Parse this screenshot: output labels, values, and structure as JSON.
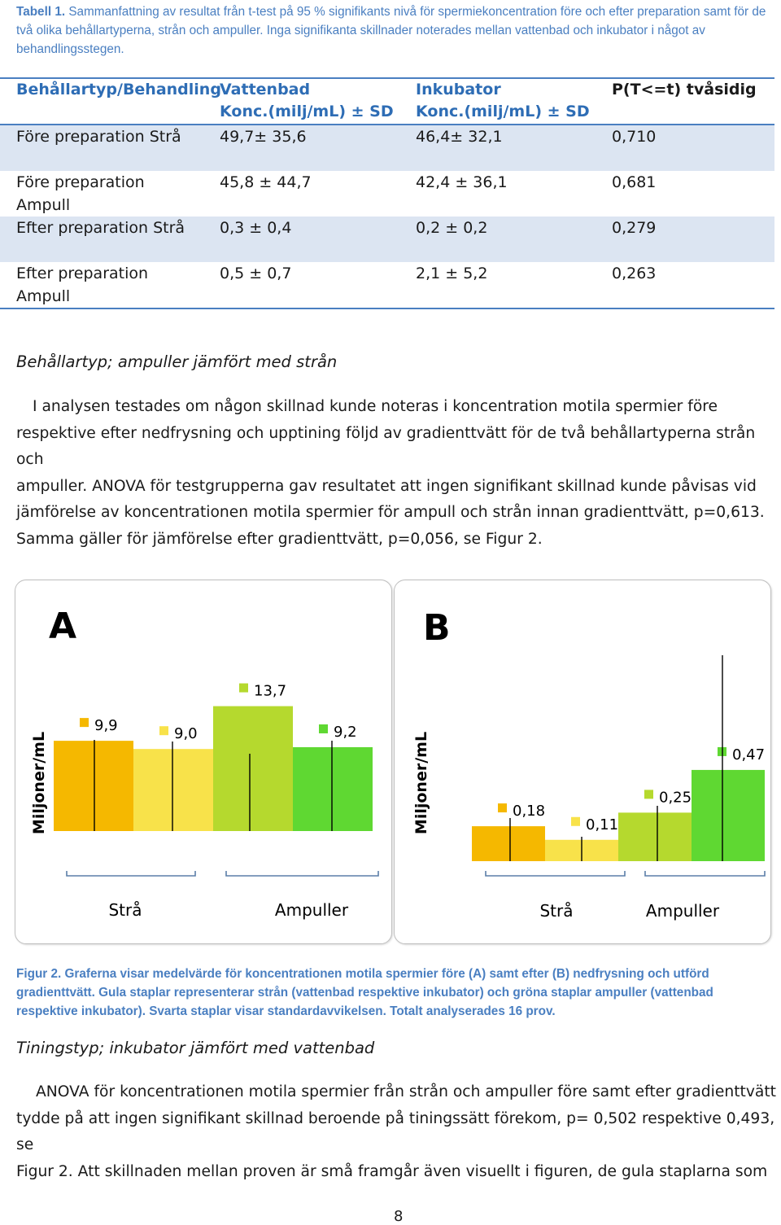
{
  "table_caption": {
    "prefix": "Tabell 1. ",
    "text": "Sammanfattning av resultat från t-test på 95 % signifikants nivå för spermiekoncentration före och efter preparation samt för de två olika behållartyperna, strån och ampuller. Inga signifikanta skillnader noterades mellan vattenbad och inkubator i något av behandlingsstegen."
  },
  "table": {
    "headers": {
      "col1": "Behållartyp/Behandling",
      "col2_line1": "Vattenbad",
      "col2_line2": "Konc.(milj/mL) ± SD",
      "col3_line1": "Inkubator",
      "col3_line2": "Konc.(milj/mL) ± SD",
      "col4": "P(T<=t) tvåsidig"
    },
    "rows": [
      {
        "label1": "Före preparation Strå",
        "label2": "",
        "vattenbad": "49,7± 35,6",
        "inkubator": "46,4± 32,1",
        "p": "0,710"
      },
      {
        "label1": "Före preparation",
        "label2": "Ampull",
        "vattenbad": "45,8 ± 44,7",
        "inkubator": "42,4 ± 36,1",
        "p": "0,681"
      },
      {
        "label1": "Efter preparation Strå",
        "label2": "",
        "vattenbad": "0,3 ± 0,4",
        "inkubator": "0,2 ± 0,2",
        "p": "0,279"
      },
      {
        "label1": "Efter preparation",
        "label2": "Ampull",
        "vattenbad": "0,5 ± 0,7",
        "inkubator": "2,1 ± 5,2",
        "p": "0,263"
      }
    ]
  },
  "section1": {
    "heading": "Behållartyp; ampuller jämfört med strån",
    "lines": [
      "I analysen testades om någon skillnad kunde noteras i koncentration motila spermier före",
      "respektive efter nedfrysning och upptining följd av gradienttvätt för de två behållartyperna strån och",
      "ampuller. ANOVA för testgrupperna gav resultatet att ingen signifikant skillnad kunde påvisas vid",
      "jämförelse av koncentrationen motila spermier för ampull och strån innan gradienttvätt, p=0,613.",
      "Samma gäller för jämförelse efter gradienttvätt, p=0,056, se Figur 2."
    ]
  },
  "colors": {
    "straw_vatten": "#f5b800",
    "straw_inkub": "#f8e24a",
    "ampull_vatten": "#b5d92e",
    "ampull_inkub": "#5fd832",
    "accent": "#4a7fc1"
  },
  "chart_data": [
    {
      "type": "bar",
      "panel_label": "A",
      "ylabel": "Miljoner/mL",
      "categories": [
        "Strå vattenbad",
        "Strå inkubator",
        "Ampuller vattenbad",
        "Ampuller inkubator"
      ],
      "values": [
        9.9,
        9.0,
        13.7,
        9.2
      ],
      "value_labels": [
        "9,9",
        "9,0",
        "13,7",
        "9,2"
      ],
      "group_labels": [
        "Strå",
        "Ampuller"
      ],
      "ylim": [
        0,
        25
      ]
    },
    {
      "type": "bar",
      "panel_label": "B",
      "ylabel": "Miljoner/mL",
      "categories": [
        "Strå vattenbad",
        "Strå inkubator",
        "Ampuller vattenbad",
        "Ampuller inkubator"
      ],
      "values": [
        0.18,
        0.11,
        0.25,
        0.47
      ],
      "value_labels": [
        "0,18",
        "0,11",
        "0,25",
        "0,47"
      ],
      "group_labels": [
        "Strå",
        "Ampuller"
      ],
      "ylim": [
        0,
        1.3
      ]
    }
  ],
  "figure_caption": {
    "prefix": "Figur 2. ",
    "text": "Graferna visar medelvärde för koncentrationen motila spermier före (A) samt efter (B) nedfrysning och utförd gradienttvätt. Gula staplar representerar strån (vattenbad respektive inkubator) och gröna staplar ampuller (vattenbad respektive inkubator). Svarta staplar visar standardavvikelsen. Totalt analyserades 16 prov."
  },
  "section2": {
    "heading": "Tiningstyp; inkubator jämfört med vattenbad",
    "lines": [
      "ANOVA för koncentrationen motila spermier från strån och ampuller före samt efter gradienttvätt",
      "tydde på att ingen signifikant skillnad beroende på tiningssätt förekom, p= 0,502 respektive 0,493, se",
      "Figur 2. Att skillnaden mellan proven är små framgår även visuellt i figuren, de gula staplarna som"
    ]
  },
  "page_number": "8"
}
